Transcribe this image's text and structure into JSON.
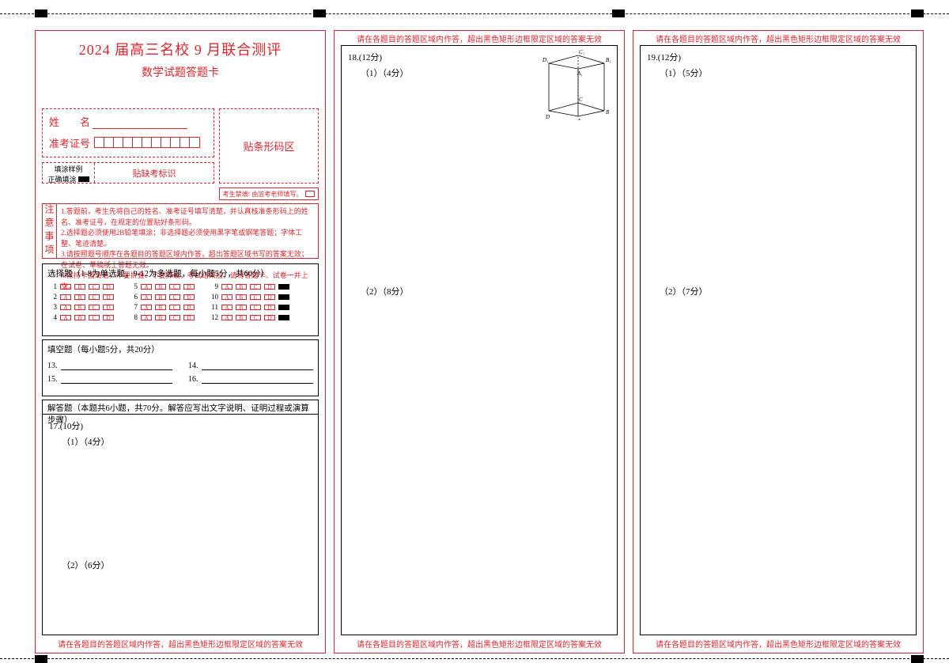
{
  "colors": {
    "accent": "#d9272e",
    "text": "#000000",
    "bg": "#ffffff"
  },
  "header": {
    "title": "2024 届高三名校 9 月联合测评",
    "subtitle": "数学试题答题卡"
  },
  "name_block": {
    "name_label": "姓　　名",
    "id_label": "准考证号",
    "id_box_count": 11
  },
  "barcode_label": "贴条形码区",
  "fill_sample": {
    "label": "填涂样例",
    "example_label": "正确填涂",
    "right_label": "贴缺考标识"
  },
  "absent_box_text": "考生禁填! 由监考老师填写。",
  "notes": {
    "side": "注意事项",
    "lines": [
      "1.答题前，考生先将自己的姓名、准考证号填写清楚，并认真核准条形码上的姓名、准考证号，在规定的位置贴好条形码。",
      "2.选择题必须使用2B铅笔填涂；非选择题必须使用黑字笔或钢笔答题；字体工整、笔迹清楚。",
      "3.请按照题号顺序在各题目的答题区域内作答，超出答题区域书写的答案无效；在试卷、草稿纸上答题无效。",
      "4.保持卡面清洁，不要折叠、不要弄破，考试结束后，请将答题卡、试卷一并上交。"
    ]
  },
  "mc": {
    "header": "选择题（1-8为单选题，9-12为多选题，每小题5分，共60分）",
    "groups": [
      {
        "start": 1,
        "end": 4,
        "options": [
          "A",
          "B",
          "C",
          "D"
        ],
        "trailing_mark": false
      },
      {
        "start": 5,
        "end": 8,
        "options": [
          "A",
          "B",
          "C",
          "D"
        ],
        "trailing_mark": false
      },
      {
        "start": 9,
        "end": 12,
        "options": [
          "A",
          "B",
          "C",
          "D"
        ],
        "trailing_mark": true
      }
    ]
  },
  "fillin": {
    "header": "填空题（每小题5分，共20分）",
    "items": [
      "13.",
      "14.",
      "15.",
      "16."
    ]
  },
  "answer_header": "解答题（本题共6小题，共70分。解答应写出文字说明、证明过程或演算步骤）",
  "q17": {
    "label": "17.(10分)",
    "part1": "（1）（4分）",
    "part2": "（2）（6分）"
  },
  "q18": {
    "label": "18.(12分)",
    "part1": "（1）（4分）",
    "part2": "（2）（8分）"
  },
  "q19": {
    "label": "19.(12分)",
    "part1": "（1）（5分）",
    "part2": "（2）（7分）"
  },
  "warn_top": "请在各题目的答题区域内作答，超出黑色矩形边框限定区域的答案无效",
  "warn_bottom": "请在各题目的答题区域内作答，超出黑色矩形边框限定区域的答案无效",
  "geometry_labels": [
    "A",
    "B",
    "C",
    "D",
    "A₁",
    "B₁",
    "C₁",
    "D₁"
  ]
}
